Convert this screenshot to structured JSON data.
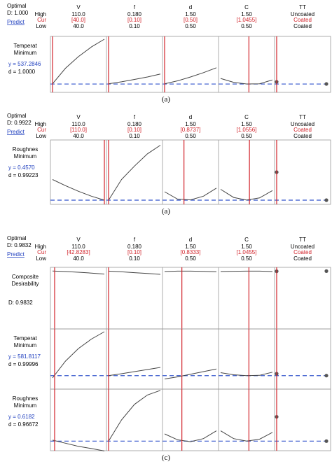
{
  "panels": [
    {
      "caption": "(a)",
      "header": {
        "optimal_label": "Optimal",
        "d_label": "D: 1.000",
        "predict_label": "Predict",
        "row_labels": [
          "High",
          "Cur",
          "Low"
        ]
      },
      "columns": [
        {
          "name": "V",
          "high": "110.0",
          "cur": "[40.0]",
          "low": "40.0"
        },
        {
          "name": "f",
          "high": "0.180",
          "cur": "[0.10]",
          "low": "0.10"
        },
        {
          "name": "d",
          "high": "1.50",
          "cur": "[0.50]",
          "low": "0.50"
        },
        {
          "name": "C",
          "high": "1.50",
          "cur": "[1.0455]",
          "low": "0.50"
        },
        {
          "name": "TT",
          "high": "Uncoated",
          "cur": "Coated",
          "low": "Coated"
        }
      ],
      "rows": [
        {
          "name_lines": [
            "Temperat",
            "Minimum"
          ],
          "y_text": "y = 537.2846",
          "d_text": "d = 1.0000"
        }
      ]
    },
    {
      "caption": "(a)",
      "header": {
        "optimal_label": "Optimal",
        "d_label": "D: 0.9922",
        "predict_label": "Predict",
        "row_labels": [
          "High",
          "Cur",
          "Low"
        ]
      },
      "columns": [
        {
          "name": "V",
          "high": "110.0",
          "cur": "[110.0]",
          "low": "40.0"
        },
        {
          "name": "f",
          "high": "0.180",
          "cur": "[0.10]",
          "low": "0.10"
        },
        {
          "name": "d",
          "high": "1.50",
          "cur": "[0.8737]",
          "low": "0.50"
        },
        {
          "name": "C",
          "high": "1.50",
          "cur": "[1.0556]",
          "low": "0.50"
        },
        {
          "name": "TT",
          "high": "Uncoated",
          "cur": "Coated",
          "low": "Coated"
        }
      ],
      "rows": [
        {
          "name_lines": [
            "Roughnes",
            "Minimum"
          ],
          "y_text": "y = 0.4570",
          "d_text": "d = 0.99223"
        }
      ]
    },
    {
      "caption": "(c)",
      "header": {
        "optimal_label": "Optimal",
        "d_label": "D: 0.9832",
        "predict_label": "Predict",
        "row_labels": [
          "High",
          "Cur",
          "Low"
        ]
      },
      "columns": [
        {
          "name": "V",
          "high": "110.0",
          "cur": "[42.8283]",
          "low": "40.0"
        },
        {
          "name": "f",
          "high": "0.180",
          "cur": "[0.10]",
          "low": "0.10"
        },
        {
          "name": "d",
          "high": "1.50",
          "cur": "[0.8333]",
          "low": "0.50"
        },
        {
          "name": "C",
          "high": "1.50",
          "cur": "[1.0455]",
          "low": "0.50"
        },
        {
          "name": "TT",
          "high": "Uncoated",
          "cur": "Coated",
          "low": "Coated"
        }
      ],
      "rows": [
        {
          "name_lines": [
            "Composite",
            "Desirability"
          ],
          "y_text": "",
          "d_text": "D: 0.9832"
        },
        {
          "name_lines": [
            "Temperat",
            "Minimum"
          ],
          "y_text": "y = 581.8117",
          "d_text": "d = 0.99996"
        },
        {
          "name_lines": [
            "Roughnes",
            "Minimum"
          ],
          "y_text": "y = 0.6182",
          "d_text": "d = 0.96672"
        }
      ]
    }
  ],
  "chart_data": [
    {
      "type": "line",
      "factors": [
        "V",
        "f",
        "d",
        "C"
      ],
      "ranges": [
        [
          40,
          110
        ],
        [
          0.1,
          0.18
        ],
        [
          0.5,
          1.5
        ],
        [
          0.5,
          1.5
        ]
      ],
      "current": [
        40.0,
        0.1,
        0.5,
        1.0455
      ],
      "series": [
        {
          "response": "Temperat",
          "y_current": 537.2846,
          "ylim": [
            480,
            1000
          ],
          "curves": [
            {
              "x": [
                40,
                57.5,
                75,
                92.5,
                110
              ],
              "y": [
                540,
                700,
                820,
                920,
                1000
              ]
            },
            {
              "x": [
                0.1,
                0.12,
                0.14,
                0.16,
                0.18
              ],
              "y": [
                540,
                560,
                585,
                610,
                640
              ]
            },
            {
              "x": [
                0.5,
                0.75,
                1.0,
                1.25,
                1.5
              ],
              "y": [
                540,
                570,
                610,
                655,
                705
              ]
            },
            {
              "x": [
                0.5,
                0.75,
                1.0,
                1.25,
                1.5
              ],
              "y": [
                595,
                555,
                538,
                540,
                580
              ]
            }
          ],
          "tt": {
            "categories": [
              "Uncoated",
              "Coated"
            ],
            "y": [
              560,
              538
            ]
          }
        }
      ]
    },
    {
      "type": "line",
      "factors": [
        "V",
        "f",
        "d",
        "C"
      ],
      "ranges": [
        [
          40,
          110
        ],
        [
          0.1,
          0.18
        ],
        [
          0.5,
          1.5
        ],
        [
          0.5,
          1.5
        ]
      ],
      "current": [
        110.0,
        0.1,
        0.8737,
        1.0556
      ],
      "series": [
        {
          "response": "Roughnes",
          "y_current": 0.457,
          "ylim": [
            0.4,
            2.8
          ],
          "curves": [
            {
              "x": [
                40,
                57.5,
                75,
                92.5,
                110
              ],
              "y": [
                1.3,
                1.05,
                0.82,
                0.62,
                0.457
              ]
            },
            {
              "x": [
                0.1,
                0.12,
                0.14,
                0.16,
                0.18
              ],
              "y": [
                0.457,
                1.3,
                1.85,
                2.35,
                2.7
              ]
            },
            {
              "x": [
                0.5,
                0.75,
                1.0,
                1.25,
                1.5
              ],
              "y": [
                0.8,
                0.5,
                0.47,
                0.62,
                0.95
              ]
            },
            {
              "x": [
                0.5,
                0.75,
                1.0,
                1.25,
                1.5
              ],
              "y": [
                0.9,
                0.57,
                0.46,
                0.55,
                0.85
              ]
            }
          ],
          "tt": {
            "categories": [
              "Uncoated",
              "Coated"
            ],
            "y": [
              1.6,
              0.457
            ]
          }
        }
      ]
    },
    {
      "type": "line",
      "factors": [
        "V",
        "f",
        "d",
        "C"
      ],
      "ranges": [
        [
          40,
          110
        ],
        [
          0.1,
          0.18
        ],
        [
          0.5,
          1.5
        ],
        [
          0.5,
          1.5
        ]
      ],
      "current": [
        42.8283,
        0.1,
        0.8333,
        1.0455
      ],
      "series": [
        {
          "response": "Composite",
          "y_current": 0.9832,
          "ylim": [
            0.0,
            1.0
          ],
          "curves": [
            {
              "x": [
                40,
                57.5,
                75,
                92.5,
                110
              ],
              "y": [
                0.985,
                0.975,
                0.962,
                0.948,
                0.93
              ]
            },
            {
              "x": [
                0.1,
                0.12,
                0.14,
                0.16,
                0.18
              ],
              "y": [
                0.983,
                0.97,
                0.955,
                0.94,
                0.925
              ]
            },
            {
              "x": [
                0.5,
                0.75,
                1.0,
                1.25,
                1.5
              ],
              "y": [
                0.975,
                0.983,
                0.982,
                0.978,
                0.97
              ]
            },
            {
              "x": [
                0.5,
                0.75,
                1.0,
                1.25,
                1.5
              ],
              "y": [
                0.975,
                0.98,
                0.983,
                0.982,
                0.975
              ]
            }
          ],
          "tt": {
            "categories": [
              "Uncoated",
              "Coated"
            ],
            "y": [
              0.98,
              0.983
            ]
          }
        },
        {
          "response": "Temperat",
          "y_current": 581.8117,
          "ylim": [
            480,
            1000
          ],
          "curves": [
            {
              "x": [
                40,
                57.5,
                75,
                92.5,
                110
              ],
              "y": [
                560,
                720,
                840,
                930,
                1000
              ]
            },
            {
              "x": [
                0.1,
                0.12,
                0.14,
                0.16,
                0.18
              ],
              "y": [
                582,
                600,
                620,
                640,
                660
              ]
            },
            {
              "x": [
                0.5,
                0.75,
                1.0,
                1.25,
                1.5
              ],
              "y": [
                550,
                570,
                595,
                620,
                645
              ]
            },
            {
              "x": [
                0.5,
                0.75,
                1.0,
                1.25,
                1.5
              ],
              "y": [
                610,
                590,
                582,
                585,
                615
              ]
            }
          ],
          "tt": {
            "categories": [
              "Uncoated",
              "Coated"
            ],
            "y": [
              600,
              582
            ]
          }
        },
        {
          "response": "Roughnes",
          "y_current": 0.6182,
          "ylim": [
            0.4,
            2.2
          ],
          "curves": [
            {
              "x": [
                40,
                57.5,
                75,
                92.5,
                110
              ],
              "y": [
                0.65,
                0.55,
                0.45,
                0.38,
                0.3
              ]
            },
            {
              "x": [
                0.1,
                0.12,
                0.14,
                0.16,
                0.18
              ],
              "y": [
                0.62,
                1.3,
                1.8,
                2.1,
                2.25
              ]
            },
            {
              "x": [
                0.5,
                0.75,
                1.0,
                1.25,
                1.5
              ],
              "y": [
                0.85,
                0.66,
                0.6,
                0.7,
                0.95
              ]
            },
            {
              "x": [
                0.5,
                0.75,
                1.0,
                1.25,
                1.5
              ],
              "y": [
                0.95,
                0.7,
                0.62,
                0.68,
                0.9
              ]
            }
          ],
          "tt": {
            "categories": [
              "Uncoated",
              "Coated"
            ],
            "y": [
              1.4,
              0.618
            ]
          }
        }
      ]
    }
  ]
}
